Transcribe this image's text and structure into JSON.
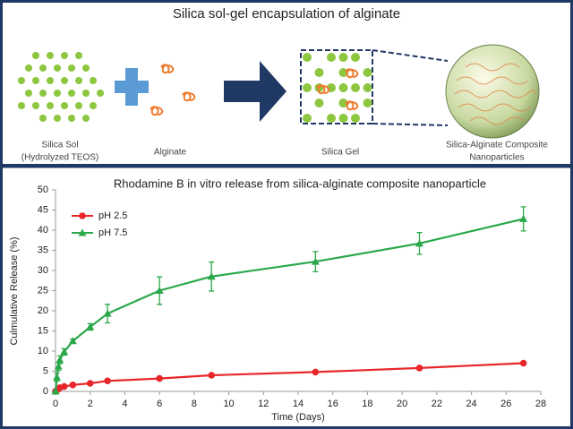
{
  "diagram": {
    "title": "Silica sol-gel encapsulation of alginate",
    "silica_sol": [
      "Silica Sol",
      "(Hydrolyzed TEOS)"
    ],
    "alginate": "Alginate",
    "silica_gel": "Silica Gel",
    "composite": [
      "Silica-Alginate Composite",
      "Nanoparticles"
    ]
  },
  "chart_data": {
    "type": "line",
    "title": "Rhodamine B in vitro release from silica-alginate composite nanoparticle",
    "x_label": "Time (Days)",
    "y_label": "Culmulative Release (%)",
    "xlim": [
      0,
      28
    ],
    "xticks": [
      0,
      2,
      4,
      6,
      8,
      10,
      12,
      14,
      16,
      18,
      20,
      22,
      24,
      26,
      28
    ],
    "ylim": [
      0,
      50
    ],
    "yticks": [
      0,
      5,
      10,
      15,
      20,
      25,
      30,
      35,
      40,
      45,
      50
    ],
    "legend": "upper-left",
    "series": [
      {
        "name": "pH 2.5",
        "color": "#e8262a",
        "marker": "circle",
        "x": [
          0,
          0.08,
          0.17,
          0.25,
          0.5,
          1,
          2,
          3,
          6,
          9,
          15,
          21,
          27
        ],
        "values": [
          0,
          0.3,
          0.6,
          0.9,
          1.2,
          1.6,
          2.0,
          2.6,
          3.2,
          4.0,
          4.8,
          5.8,
          7.0
        ]
      },
      {
        "name": "pH 7.5",
        "color": "#2aa84a",
        "marker": "triangle",
        "x": [
          0,
          0.08,
          0.17,
          0.25,
          0.5,
          1,
          2,
          3,
          6,
          9,
          15,
          21,
          27
        ],
        "values": [
          0,
          3.5,
          6.2,
          7.8,
          9.8,
          12.5,
          16,
          19.3,
          25,
          28.5,
          32.2,
          36.7,
          42.8
        ],
        "errors": [
          0,
          1,
          1,
          1,
          0.8,
          0.5,
          0.8,
          2.3,
          3.4,
          3.6,
          2.5,
          2.7,
          3
        ]
      }
    ]
  }
}
